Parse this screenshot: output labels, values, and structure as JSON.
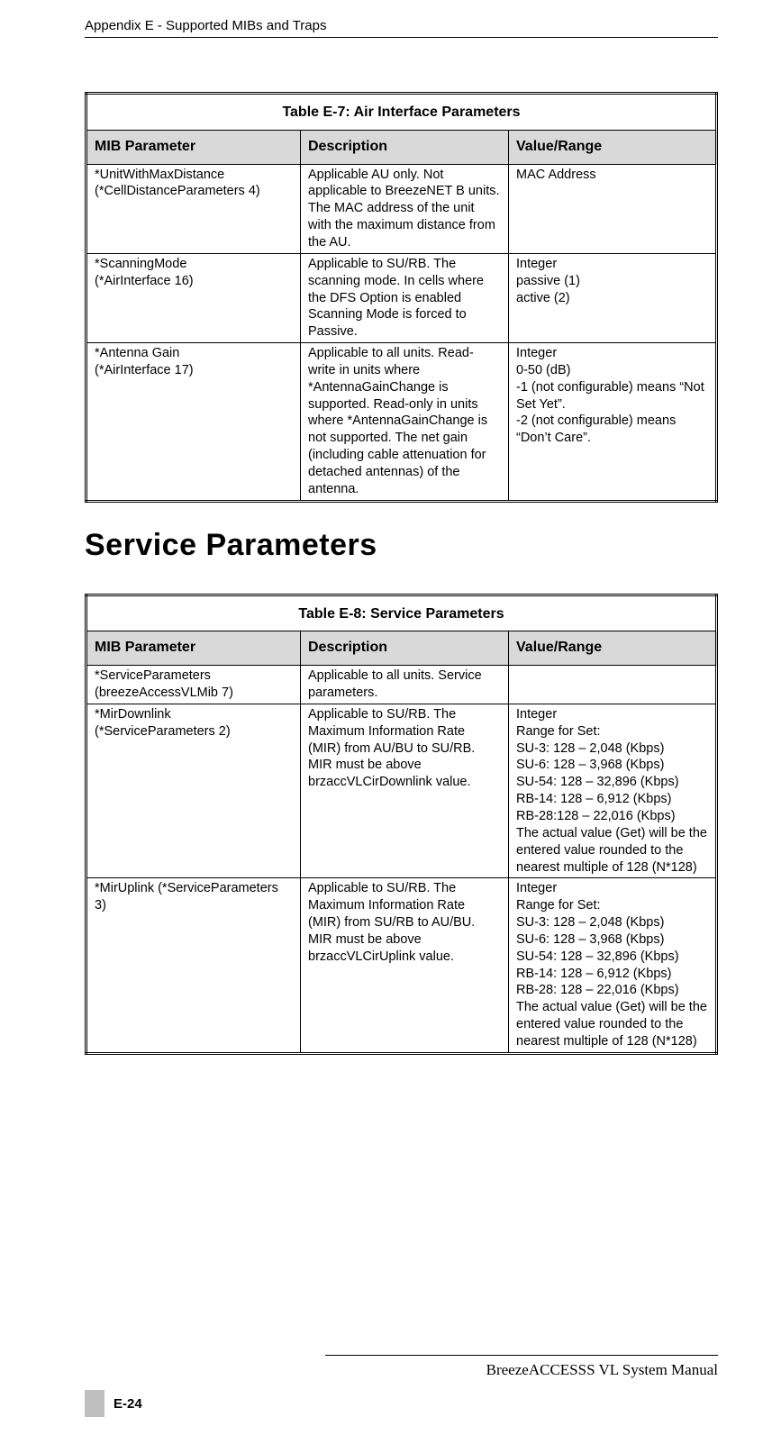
{
  "colors": {
    "page_bg": "#ffffff",
    "text": "#000000",
    "header_bg": "#d9d9d9",
    "tab_bg": "#bfbfbf",
    "rule": "#000000"
  },
  "running_head": "Appendix E - Supported MIBs and Traps",
  "table_e7": {
    "caption": "Table E-7: Air Interface Parameters",
    "headers": {
      "mib": "MIB Parameter",
      "desc": "Description",
      "val": "Value/Range"
    },
    "rows": [
      {
        "mib": "*UnitWithMaxDistance (*CellDistanceParameters 4)",
        "desc": "Applicable AU only. Not applicable to BreezeNET B units. The MAC address of the unit with the maximum distance from the AU.",
        "val": "MAC Address"
      },
      {
        "mib": "*ScanningMode\n(*AirInterface 16)",
        "desc": "Applicable to SU/RB. The scanning mode. In cells where the DFS Option is enabled Scanning Mode is forced to Passive.",
        "val": "Integer\npassive (1)\nactive (2)"
      },
      {
        "mib": "*Antenna Gain\n(*AirInterface 17)",
        "desc": "Applicable to all units. Read-write in units where *AntennaGainChange  is supported. Read-only in units where *AntennaGainChange is not supported. The net gain (including cable attenuation for detached antennas) of the antenna.",
        "val": "Integer\n0-50 (dB)\n-1 (not configurable) means “Not Set Yet”.\n-2 (not configurable) means “Don’t Care”."
      }
    ]
  },
  "section_title": "Service Parameters",
  "table_e8": {
    "caption": "Table E-8: Service Parameters",
    "headers": {
      "mib": "MIB Parameter",
      "desc": "Description",
      "val": "Value/Range"
    },
    "rows": [
      {
        "mib": "*ServiceParameters (breezeAccessVLMib 7)",
        "desc": "Applicable to all units. Service parameters.",
        "val": ""
      },
      {
        "mib": "*MirDownlink (*ServiceParameters 2)",
        "desc": "Applicable to SU/RB. The Maximum Information Rate (MIR) from AU/BU to SU/RB. MIR must be above brzaccVLCirDownlink value.",
        "val": "Integer\nRange for Set:\nSU-3: 128 – 2,048 (Kbps)\nSU-6: 128 – 3,968 (Kbps)\nSU-54: 128 – 32,896 (Kbps)\nRB-14: 128 – 6,912 (Kbps)\nRB-28:128 – 22,016 (Kbps)\nThe actual value (Get) will be the entered value rounded to the nearest multiple of 128 (N*128)"
      },
      {
        "mib": "*MirUplink (*ServiceParameters 3)",
        "desc": "Applicable to SU/RB. The Maximum Information Rate (MIR) from SU/RB to AU/BU. MIR must be above brzaccVLCirUplink value.",
        "val": "Integer\nRange for Set:\nSU-3: 128 – 2,048 (Kbps)\nSU-6: 128 – 3,968 (Kbps)\nSU-54: 128 – 32,896 (Kbps)\nRB-14: 128 – 6,912 (Kbps)\nRB-28: 128 – 22,016 (Kbps)\nThe actual value (Get) will be the entered value rounded to the nearest multiple of 128 (N*128)"
      }
    ]
  },
  "footer": {
    "manual_title": "BreezeACCESSS VL System Manual",
    "page_number": "E-24"
  }
}
